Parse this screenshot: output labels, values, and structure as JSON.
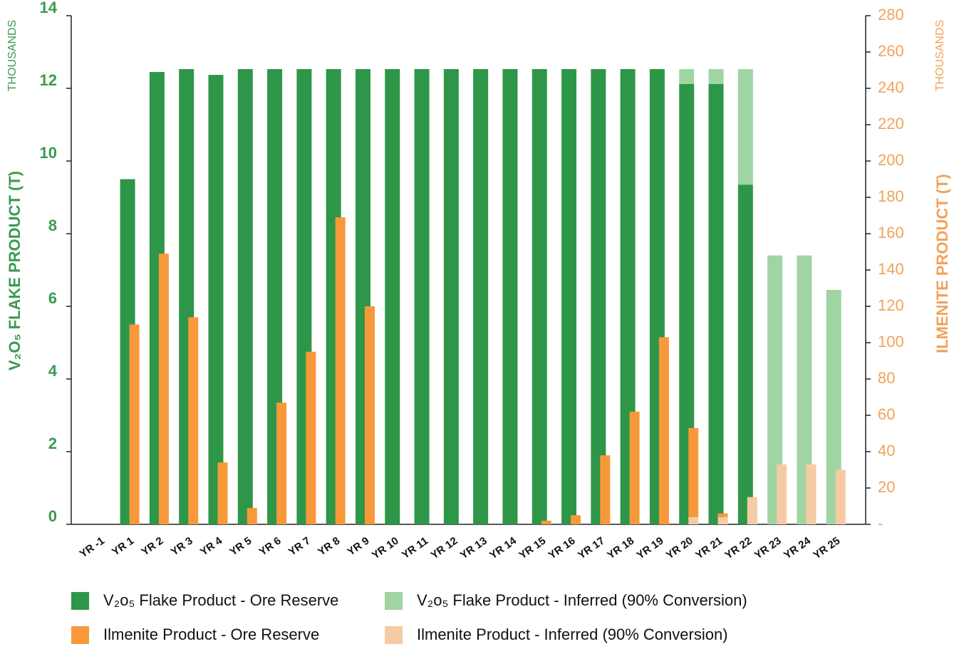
{
  "chart_data": {
    "type": "bar",
    "y_label": "V₂O₅ FLAKE PRODUCT (T)",
    "y_unit": "THOUSANDS",
    "y2_label": "ILMENITE PRODUCT (T)",
    "y2_unit": "THOUSANDS",
    "categories": [
      "YR -1",
      "YR 1",
      "YR 2",
      "YR 3",
      "YR 4",
      "YR 5",
      "YR 6",
      "YR 7",
      "YR 8",
      "YR 9",
      "YR 10",
      "YR 11",
      "YR 12",
      "YR 13",
      "YR 14",
      "YR 15",
      "YR 16",
      "YR 17",
      "YR 18",
      "YR 19",
      "YR 20",
      "YR 21",
      "YR 22",
      "YR 23",
      "YR 24",
      "YR 25"
    ],
    "series": [
      {
        "name": "V₂o₅ Flake Product - Ore Reserve",
        "color": "#2e9648",
        "axis": "y",
        "values": [
          0,
          9.5,
          12.45,
          12.53,
          12.37,
          12.53,
          12.53,
          12.53,
          12.53,
          12.53,
          12.53,
          12.53,
          12.53,
          12.53,
          12.53,
          12.53,
          12.53,
          12.53,
          12.53,
          12.53,
          12.12,
          12.12,
          9.35,
          0,
          0,
          0
        ]
      },
      {
        "name": "V₂o₅ Flake Product - Inferred (90% Conversion)",
        "color": "#a0d4a3",
        "axis": "y",
        "values": [
          0,
          0,
          0,
          0,
          0,
          0,
          0,
          0,
          0,
          0,
          0,
          0,
          0,
          0,
          0,
          0,
          0,
          0,
          0,
          0,
          0.41,
          0.41,
          3.18,
          7.4,
          7.4,
          6.45
        ]
      },
      {
        "name": "Ilmenite Product - Ore Reserve",
        "color": "#f7993a",
        "axis": "y2",
        "values": [
          0,
          110,
          149,
          114,
          34,
          9,
          67,
          95,
          169,
          120,
          0,
          0,
          0,
          0,
          0,
          2,
          5,
          38,
          62,
          103,
          49,
          2,
          0,
          0,
          0,
          0
        ]
      },
      {
        "name": "Ilmenite Product - Inferred (90% Conversion)",
        "color": "#f5cba5",
        "axis": "y2",
        "values": [
          0,
          0,
          0,
          0,
          0,
          0,
          0,
          0,
          0,
          0,
          0,
          0,
          0,
          0,
          0,
          0,
          0,
          0,
          0,
          0,
          4,
          4,
          15,
          33,
          33,
          30
        ]
      }
    ],
    "ylim": [
      0,
      14
    ],
    "yticks": [
      0,
      2,
      4,
      6,
      8,
      10,
      12,
      14
    ],
    "y2lim": [
      0,
      280
    ],
    "y2ticks": [
      {
        "value": 0,
        "label": "-"
      },
      20,
      40,
      60,
      80,
      100,
      120,
      140,
      160,
      180,
      200,
      220,
      240,
      260,
      280
    ],
    "y_color": "#3a9a50",
    "y2_color": "#f2a25a",
    "grid": false
  }
}
